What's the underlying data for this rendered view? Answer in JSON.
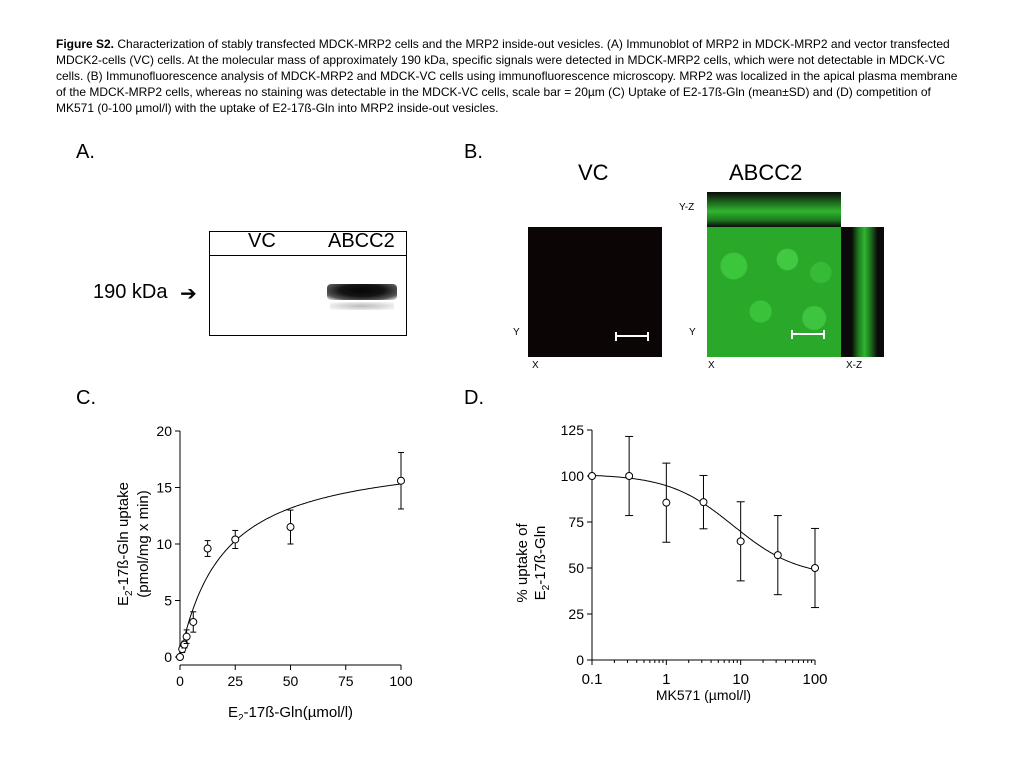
{
  "caption": {
    "label": "Figure S2.",
    "text": " Characterization of stably transfected MDCK-MRP2 cells and the MRP2    inside-out vesicles. (A) Immunoblot of MRP2 in MDCK-MRP2 and vector transfected MDCK2-cells (VC) cells. At the molecular mass of approximately 190 kDa, specific signals were detected in MDCK-MRP2 cells, which were not detectable in MDCK-VC cells. (B) Immunofluorescence analysis of MDCK-MRP2 and MDCK-VC cells using immunofluorescence microscopy. MRP2 was localized in the apical plasma membrane of the MDCK-MRP2 cells, whereas no staining was detectable in the MDCK-VC cells, scale bar = 20µm (C) Uptake of E2-17ß-Gln (mean±SD) and (D) competition of MK571 (0-100 µmol/l) with the uptake of E2-17ß-Gln into MRP2 inside-out vesicles."
  },
  "panel_a": {
    "label": "A.",
    "lanes": [
      "VC",
      "ABCC2"
    ],
    "marker": "190 kDa",
    "arrow": "➔"
  },
  "panel_b": {
    "label": "B.",
    "col_vc": "VC",
    "col_abcc2": "ABCC2",
    "yz": "Y-Z",
    "y": "Y",
    "x": "X",
    "xz": "X-Z",
    "colors": {
      "dark": "#0a0504",
      "green": "#2db02d",
      "green_dark": "#0d3a0d"
    }
  },
  "panel_c": {
    "label": "C."
  },
  "panel_d": {
    "label": "D."
  },
  "chart_data": [
    {
      "type": "scatter",
      "ylabel_line1": "E2-17ß-Gln uptake",
      "ylabel_line2": "(pmol/mg x min)",
      "xlabel": "E2-17ß-Gln(µmol/l)",
      "xlim": [
        0,
        100
      ],
      "ylim": [
        0,
        20
      ],
      "xticks": [
        0,
        25,
        50,
        75,
        100
      ],
      "yticks": [
        0,
        5,
        10,
        15,
        20
      ],
      "points": [
        {
          "x": 0,
          "y": 0,
          "err": 0
        },
        {
          "x": 1,
          "y": 0.7,
          "err": 0.3
        },
        {
          "x": 2,
          "y": 1.1,
          "err": 0.3
        },
        {
          "x": 3,
          "y": 1.8,
          "err": 0.6
        },
        {
          "x": 6,
          "y": 3.1,
          "err": 0.9
        },
        {
          "x": 12.5,
          "y": 9.6,
          "err": 0.7
        },
        {
          "x": 25,
          "y": 10.4,
          "err": 0.8
        },
        {
          "x": 50,
          "y": 11.5,
          "err": 1.5
        },
        {
          "x": 100,
          "y": 15.6,
          "err": 2.5
        }
      ],
      "fit": {
        "vmax": 18.3,
        "km": 19.5
      }
    },
    {
      "type": "scatter",
      "ylabel_line1": "% uptake of",
      "ylabel_line2": "E2-17ß-Gln",
      "xlabel": "MK571 (µmol/l)",
      "xscale": "log",
      "xlim": [
        0.1,
        100
      ],
      "ylim": [
        0,
        125
      ],
      "xticks": [
        "0.1",
        "1",
        "10",
        "100"
      ],
      "yticks": [
        0,
        25,
        50,
        75,
        100,
        125
      ],
      "points": [
        {
          "x": 0.1,
          "y": 100,
          "err": 0
        },
        {
          "x": 0.316,
          "y": 100,
          "err": 21.5
        },
        {
          "x": 1,
          "y": 85.5,
          "err": 21.5
        },
        {
          "x": 3.16,
          "y": 85.8,
          "err": 14.5
        },
        {
          "x": 10,
          "y": 64.5,
          "err": 21.5
        },
        {
          "x": 31.6,
          "y": 57,
          "err": 21.5
        },
        {
          "x": 100,
          "y": 50,
          "err": 21.5
        }
      ],
      "fit": {
        "top": 101,
        "bottom": 45,
        "logic50": 0.9,
        "hill": 1
      }
    }
  ]
}
